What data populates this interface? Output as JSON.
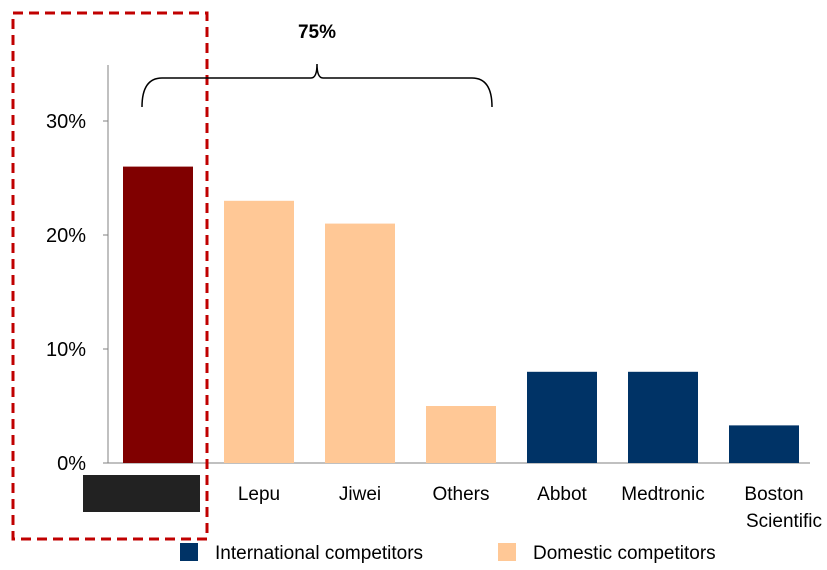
{
  "chart_data": {
    "type": "bar",
    "categories": [
      "",
      "Lepu",
      "Jiwei",
      "Others",
      "Abbot",
      "Medtronic",
      "Boston Scientific"
    ],
    "values": [
      26,
      23,
      21,
      5,
      8,
      8,
      3.3
    ],
    "bar_colors": [
      "#800000",
      "#FFC896",
      "#FFC896",
      "#FFC896",
      "#003366",
      "#003366",
      "#003366"
    ],
    "ylim": [
      0,
      35
    ],
    "yticks": [
      0,
      10,
      20,
      30
    ],
    "ytick_labels": [
      "0%",
      "10%",
      "20%",
      "30%"
    ],
    "grid": false,
    "legend_position": "bottom",
    "legend": [
      {
        "label": "International competitors",
        "color": "#003366"
      },
      {
        "label": "Domestic competitors",
        "color": "#FFC896"
      }
    ],
    "annotation": {
      "text": "75%",
      "spans_categories": [
        0,
        3
      ]
    },
    "highlight": {
      "category_index": 0,
      "style": "dashed-box",
      "color": "#C00000"
    },
    "redacted_label_color": "#222222"
  }
}
